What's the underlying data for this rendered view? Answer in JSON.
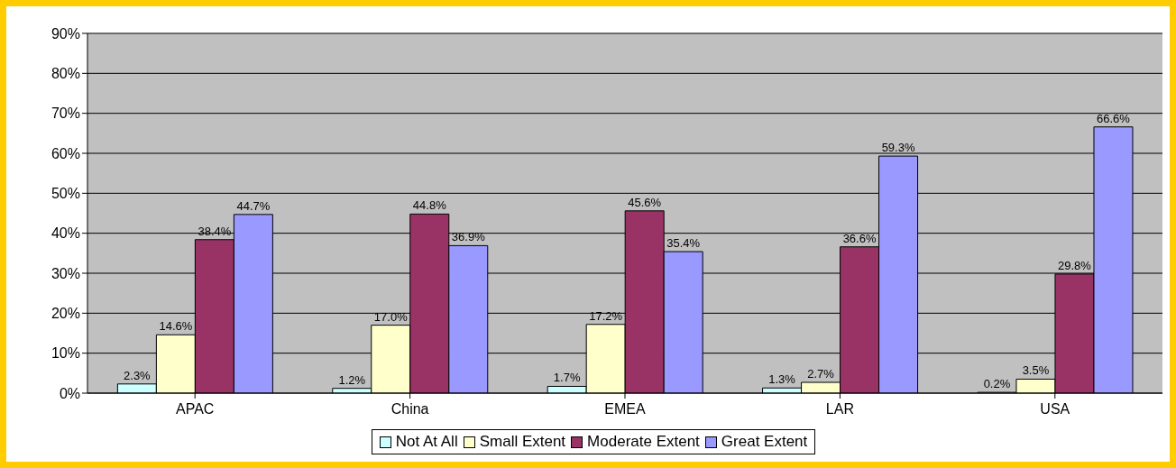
{
  "chart_data": {
    "type": "bar",
    "categories": [
      "APAC",
      "China",
      "EMEA",
      "LAR",
      "USA"
    ],
    "series": [
      {
        "name": "Not At All",
        "color": "#ccffff",
        "values": [
          2.3,
          1.2,
          1.7,
          1.3,
          0.2
        ],
        "value_labels": [
          "2.3%",
          "1.2%",
          "1.7%",
          "1.3%",
          "0.2%"
        ]
      },
      {
        "name": "Small Extent",
        "color": "#ffffcc",
        "values": [
          14.6,
          17.0,
          17.2,
          2.7,
          3.5
        ],
        "value_labels": [
          "14.6%",
          "17.0%",
          "17.2%",
          "2.7%",
          "3.5%"
        ]
      },
      {
        "name": "Moderate Extent",
        "color": "#993366",
        "values": [
          38.4,
          44.8,
          45.6,
          36.6,
          29.8
        ],
        "value_labels": [
          "38.4%",
          "44.8%",
          "45.6%",
          "36.6%",
          "29.8%"
        ]
      },
      {
        "name": "Great Extent",
        "color": "#9999ff",
        "values": [
          44.7,
          36.9,
          35.4,
          59.3,
          66.6
        ],
        "value_labels": [
          "44.7%",
          "36.9%",
          "35.4%",
          "59.3%",
          "66.6%"
        ]
      }
    ],
    "ylim": [
      0,
      90
    ],
    "yticks": [
      {
        "value": 0,
        "label": "0%"
      },
      {
        "value": 10,
        "label": "10%"
      },
      {
        "value": 20,
        "label": "20%"
      },
      {
        "value": 30,
        "label": "30%"
      },
      {
        "value": 40,
        "label": "40%"
      },
      {
        "value": 50,
        "label": "50%"
      },
      {
        "value": 60,
        "label": "60%"
      },
      {
        "value": 70,
        "label": "70%"
      },
      {
        "value": 80,
        "label": "80%"
      },
      {
        "value": 90,
        "label": "90%"
      }
    ],
    "grid": "y",
    "legend": "bottom"
  }
}
